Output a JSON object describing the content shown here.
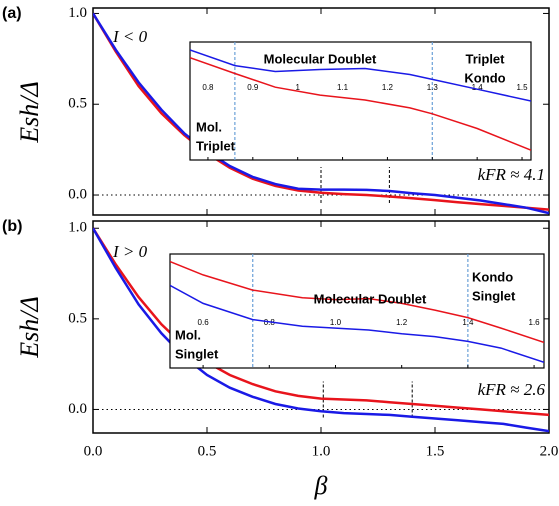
{
  "chart_data": [
    {
      "type": "line",
      "panel_label": "(a)",
      "ylabel": "Esh/Δ",
      "annotations": [
        "I < 0",
        "kFR ≈ 4.1"
      ],
      "x": [
        0,
        0.1,
        0.2,
        0.3,
        0.4,
        0.5,
        0.6,
        0.7,
        0.8,
        0.9,
        1.0,
        1.1,
        1.2,
        1.3,
        1.4,
        1.5,
        1.6,
        1.7,
        1.8,
        1.9,
        2.0
      ],
      "series": [
        {
          "color": "#e8141c",
          "values": [
            1.0,
            0.79,
            0.6,
            0.45,
            0.33,
            0.23,
            0.15,
            0.09,
            0.05,
            0.025,
            0.012,
            0.005,
            0.0,
            -0.008,
            -0.018,
            -0.028,
            -0.04,
            -0.05,
            -0.06,
            -0.07,
            -0.08
          ]
        },
        {
          "color": "#1a1ae6",
          "values": [
            1.0,
            0.8,
            0.62,
            0.47,
            0.34,
            0.24,
            0.16,
            0.1,
            0.06,
            0.035,
            0.03,
            0.03,
            0.028,
            0.022,
            0.01,
            0.0,
            -0.015,
            -0.03,
            -0.05,
            -0.07,
            -0.1
          ]
        }
      ],
      "xlim": [
        0,
        2
      ],
      "ylim": [
        -0.11,
        1.03
      ],
      "xticks": [
        0,
        0.5,
        1,
        1.5,
        2
      ],
      "yticks": [
        {
          "value": 0,
          "label": "0.0"
        },
        {
          "value": 0.5,
          "label": "0.5"
        },
        {
          "value": 1,
          "label": "1.0"
        }
      ],
      "dashed_lines": [
        1.0,
        1.3
      ],
      "zero_line": true
    },
    {
      "type": "line",
      "inset_labels": [
        "Molecular Doublet",
        [
          "Triplet",
          "Kondo"
        ],
        [
          "Mol.",
          "Triplet"
        ]
      ],
      "x": [
        0.76,
        0.86,
        0.95,
        1.05,
        1.15,
        1.25,
        1.3,
        1.4,
        1.52
      ],
      "series": [
        {
          "color": "#e8141c",
          "values": [
            0.044,
            0.028,
            0.014,
            0.006,
            0.001,
            -0.007,
            -0.013,
            -0.028,
            -0.05
          ]
        },
        {
          "color": "#1a1ae6",
          "values": [
            0.052,
            0.036,
            0.03,
            0.032,
            0.033,
            0.027,
            0.022,
            0.012,
            0.0
          ]
        }
      ],
      "xlim": [
        0.76,
        1.52
      ],
      "ylim": [
        -0.06,
        0.06
      ],
      "xticks": [
        0.8,
        0.9,
        1,
        1.1,
        1.2,
        1.3,
        1.4,
        1.5
      ],
      "dashed_lines": [
        0.86,
        1.3
      ]
    },
    {
      "type": "line",
      "panel_label": "(b)",
      "ylabel": "Esh/Δ",
      "xlabel": "β",
      "annotations": [
        "I > 0",
        "kFR ≈ 2.6"
      ],
      "x": [
        0,
        0.1,
        0.2,
        0.3,
        0.4,
        0.5,
        0.6,
        0.7,
        0.8,
        0.9,
        1.0,
        1.1,
        1.2,
        1.3,
        1.4,
        1.5,
        1.6,
        1.7,
        1.8,
        1.9,
        2.0
      ],
      "series": [
        {
          "color": "#e8141c",
          "values": [
            1.0,
            0.8,
            0.62,
            0.47,
            0.35,
            0.26,
            0.19,
            0.14,
            0.1,
            0.075,
            0.06,
            0.055,
            0.05,
            0.04,
            0.03,
            0.02,
            0.01,
            0.0,
            -0.01,
            -0.02,
            -0.03
          ]
        },
        {
          "color": "#1a1ae6",
          "values": [
            1.0,
            0.78,
            0.58,
            0.42,
            0.29,
            0.19,
            0.12,
            0.07,
            0.03,
            0.005,
            -0.01,
            -0.02,
            -0.025,
            -0.03,
            -0.04,
            -0.05,
            -0.06,
            -0.07,
            -0.08,
            -0.1,
            -0.12
          ]
        }
      ],
      "xlim": [
        0,
        2
      ],
      "ylim": [
        -0.13,
        1.04
      ],
      "xticks": [
        {
          "value": 0,
          "label": "0.0"
        },
        {
          "value": 0.5,
          "label": "0.5"
        },
        {
          "value": 1,
          "label": "1.0"
        },
        {
          "value": 1.5,
          "label": "1.5"
        },
        {
          "value": 2,
          "label": "2.0"
        }
      ],
      "yticks": [
        {
          "value": 0,
          "label": "0.0"
        },
        {
          "value": 0.5,
          "label": "0.5"
        },
        {
          "value": 1,
          "label": "1.0"
        }
      ],
      "dashed_lines": [
        1.01,
        1.4
      ],
      "zero_line": true
    },
    {
      "type": "line",
      "inset_labels": [
        "Molecular Doublet",
        [
          "Kondo",
          "Singlet"
        ],
        [
          "Mol.",
          "Singlet"
        ]
      ],
      "x": [
        0.5,
        0.6,
        0.75,
        0.9,
        1.0,
        1.1,
        1.2,
        1.3,
        1.4,
        1.5,
        1.63
      ],
      "series": [
        {
          "color": "#e8141c",
          "values": [
            0.052,
            0.038,
            0.022,
            0.014,
            0.012,
            0.013,
            0.008,
            0.001,
            -0.007,
            -0.018,
            -0.033
          ]
        },
        {
          "color": "#1a1ae6",
          "values": [
            0.027,
            0.008,
            -0.009,
            -0.016,
            -0.018,
            -0.02,
            -0.024,
            -0.027,
            -0.032,
            -0.039,
            -0.054
          ]
        }
      ],
      "xlim": [
        0.5,
        1.63
      ],
      "ylim": [
        -0.06,
        0.06
      ],
      "xticks": [
        0.6,
        0.8,
        {
          "value": 1,
          "label": "1.0"
        },
        1.2,
        1.4,
        1.6
      ],
      "dashed_lines": [
        0.75,
        1.4
      ]
    }
  ]
}
